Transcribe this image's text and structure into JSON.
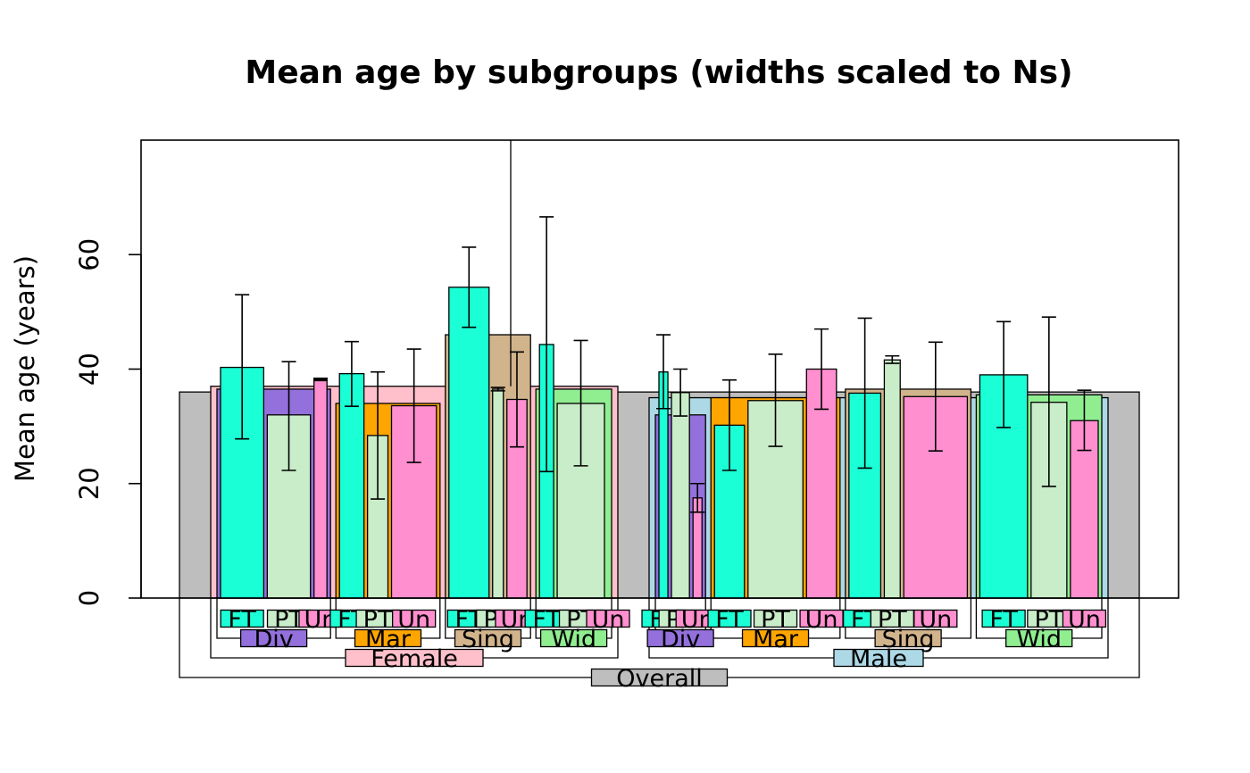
{
  "chart_data": {
    "type": "bar",
    "title": "Mean age by subgroups (widths scaled to Ns)",
    "ylabel": "Mean age (years)",
    "xlabel": "",
    "ylim": [
      0,
      80
    ],
    "yticks": [
      0,
      20,
      40,
      60
    ],
    "colors": {
      "Overall": "#bebebe",
      "Female": "#ffc0cb",
      "Male": "#add8e6",
      "Div": "#9370db",
      "Mar": "#ffa500",
      "Sing": "#d2b48c",
      "Wid": "#90ee90",
      "FT": "#1affd5",
      "PT": "#c9ecc9",
      "Un": "#ff8fcf"
    },
    "level1": {
      "label": "Overall",
      "mean": 36,
      "n": 1000
    },
    "level2": [
      {
        "label": "Female",
        "mean": 37,
        "n": 400
      },
      {
        "label": "Male",
        "mean": 35,
        "n": 600
      }
    ],
    "level3": [
      {
        "label": "Div",
        "parent": "Female",
        "mean": 36.5,
        "n": 120
      },
      {
        "label": "Mar",
        "parent": "Female",
        "mean": 34,
        "n": 110
      },
      {
        "label": "Sing",
        "parent": "Female",
        "mean": 46,
        "n": 90
      },
      {
        "label": "Wid",
        "parent": "Female",
        "mean": 36.5,
        "n": 80
      },
      {
        "label": "Div",
        "parent": "Male",
        "mean": 32,
        "n": 70
      },
      {
        "label": "Mar",
        "parent": "Male",
        "mean": 35,
        "n": 180
      },
      {
        "label": "Sing",
        "parent": "Male",
        "mean": 36.5,
        "n": 175
      },
      {
        "label": "Wid",
        "parent": "Male",
        "mean": 35.5,
        "n": 175
      }
    ],
    "level4": [
      {
        "label": "FT",
        "parent": "Female / Div",
        "mean": 40.3,
        "lower": 27.8,
        "upper": 53,
        "n": 50
      },
      {
        "label": "PT",
        "parent": "Female / Div",
        "mean": 32,
        "lower": 22.3,
        "upper": 41.3,
        "n": 50
      },
      {
        "label": "Un",
        "parent": "Female / Div",
        "mean": 38.2,
        "lower": 38,
        "upper": 38.4,
        "n": 15
      },
      {
        "label": "FT",
        "parent": "Female / Mar",
        "mean": 39.2,
        "lower": 33.5,
        "upper": 44.8,
        "n": 30
      },
      {
        "label": "PT",
        "parent": "Female / Mar",
        "mean": 28.4,
        "lower": 17.3,
        "upper": 39.5,
        "n": 25
      },
      {
        "label": "Un",
        "parent": "Female / Mar",
        "mean": 33.6,
        "lower": 23.7,
        "upper": 43.5,
        "n": 55
      },
      {
        "label": "FT",
        "parent": "Female / Sing",
        "mean": 54.3,
        "lower": 47.3,
        "upper": 61.3,
        "n": 30
      },
      {
        "label": "PT",
        "parent": "Female / Sing",
        "mean": 36.5,
        "lower": 36.2,
        "upper": 36.8,
        "n": 8
      },
      {
        "label": "Un",
        "parent": "Female / Sing",
        "mean": 34.7,
        "lower": 26.4,
        "upper": 43,
        "n": 15
      },
      {
        "label": "FT",
        "parent": "Female / Wid",
        "mean": 44.3,
        "lower": 22.1,
        "upper": 66.6,
        "n": 15
      },
      {
        "label": "PT",
        "parent": "Female / Wid",
        "mean": 34,
        "lower": 23.1,
        "upper": 45,
        "n": 50
      },
      {
        "label": "Un",
        "parent": "Female / Wid",
        "mean": 36.5,
        "lower": 36.5,
        "upper": 36.5,
        "n": 0
      },
      {
        "label": "FT",
        "parent": "Male / Div",
        "mean": 39.5,
        "lower": 33.1,
        "upper": 46,
        "n": 15
      },
      {
        "label": "PT",
        "parent": "Male / Div",
        "mean": 35.9,
        "lower": 31.8,
        "upper": 40,
        "n": 30
      },
      {
        "label": "Un",
        "parent": "Male / Div",
        "mean": 17.5,
        "lower": 15,
        "upper": 20,
        "n": 15
      },
      {
        "label": "FT",
        "parent": "Male / Mar",
        "mean": 30.2,
        "lower": 22.3,
        "upper": 38.1,
        "n": 30
      },
      {
        "label": "PT",
        "parent": "Male / Mar",
        "mean": 34.5,
        "lower": 26.5,
        "upper": 42.6,
        "n": 55
      },
      {
        "label": "Un",
        "parent": "Male / Mar",
        "mean": 40,
        "lower": 33,
        "upper": 47,
        "n": 30
      },
      {
        "label": "FT",
        "parent": "Male / Sing",
        "mean": 35.8,
        "lower": 22.7,
        "upper": 48.9,
        "n": 30
      },
      {
        "label": "PT",
        "parent": "Male / Sing",
        "mean": 41.6,
        "lower": 41,
        "upper": 42.3,
        "n": 15
      },
      {
        "label": "Un",
        "parent": "Male / Sing",
        "mean": 35.2,
        "lower": 25.7,
        "upper": 44.7,
        "n": 60
      },
      {
        "label": "FT",
        "parent": "Male / Wid",
        "mean": 39,
        "lower": 29.8,
        "upper": 48.3,
        "n": 60
      },
      {
        "label": "PT",
        "parent": "Male / Wid",
        "mean": 34.2,
        "lower": 19.5,
        "upper": 49.1,
        "n": 45
      },
      {
        "label": "Un",
        "parent": "Male / Wid",
        "mean": 31,
        "lower": 25.8,
        "upper": 36.3,
        "n": 35
      }
    ]
  }
}
